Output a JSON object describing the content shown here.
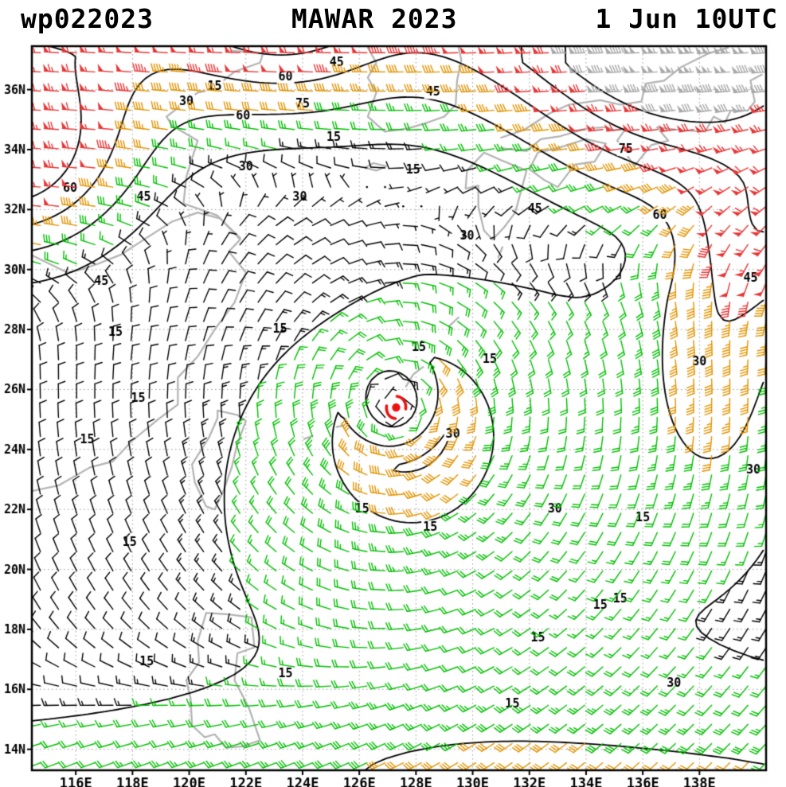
{
  "header": {
    "storm_id": "wp022023",
    "title": "MAWAR 2023",
    "valid_time": "1 Jun 10UTC"
  },
  "chart_data": {
    "type": "wind-barb-map",
    "title": "MAWAR 2023 1 Jun 10UTC",
    "storm_id": "wp022023",
    "storm_name": "MAWAR",
    "storm_year": "2023",
    "valid_time": "1 Jun 10UTC",
    "units": "kt",
    "lon_range": [
      114.45,
      140.35
    ],
    "lat_range": [
      13.3,
      37.45
    ],
    "lon_ticks": [
      {
        "value": 116,
        "label": "116E"
      },
      {
        "value": 118,
        "label": "118E"
      },
      {
        "value": 120,
        "label": "120E"
      },
      {
        "value": 122,
        "label": "122E"
      },
      {
        "value": 124,
        "label": "124E"
      },
      {
        "value": 126,
        "label": "126E"
      },
      {
        "value": 128,
        "label": "128E"
      },
      {
        "value": 130,
        "label": "130E"
      },
      {
        "value": 132,
        "label": "132E"
      },
      {
        "value": 134,
        "label": "134E"
      },
      {
        "value": 136,
        "label": "136E"
      },
      {
        "value": 138,
        "label": "138E"
      }
    ],
    "lat_ticks": [
      {
        "value": 14,
        "label": "14N"
      },
      {
        "value": 16,
        "label": "16N"
      },
      {
        "value": 18,
        "label": "18N"
      },
      {
        "value": 20,
        "label": "20N"
      },
      {
        "value": 22,
        "label": "22N"
      },
      {
        "value": 24,
        "label": "24N"
      },
      {
        "value": 26,
        "label": "26N"
      },
      {
        "value": 28,
        "label": "28N"
      },
      {
        "value": 30,
        "label": "30N"
      },
      {
        "value": 32,
        "label": "32N"
      },
      {
        "value": 34,
        "label": "34N"
      },
      {
        "value": 36,
        "label": "36N"
      }
    ],
    "isotach_levels_kt": [
      15,
      30,
      45,
      60,
      75
    ],
    "speed_thresholds_kt": [
      15,
      30,
      45,
      75
    ],
    "palette": {
      "barb_lt15": "#000000",
      "barb_15_30": "#00bf00",
      "barb_30_45": "#e29400",
      "barb_45_75": "#e83535",
      "barb_ge75": "#a8a8a8",
      "contour": "#000000",
      "coast": "#b3b3b3",
      "grid": "#999999",
      "storm_symbol": "#ee1111",
      "background": "#ffffff",
      "text": "#000000"
    },
    "storm_center": {
      "lon": 127.3,
      "lat": 25.4
    },
    "barb_grid": {
      "spacing_deg": 0.64,
      "lon_start": 114.75,
      "lat_start": 13.55
    },
    "wind_field_model": {
      "jet": {
        "base_kt": 92,
        "lat_start_base": 29.0,
        "lat_start_bump": 2.5,
        "lat_start_bump_lon": 123.0,
        "lat_start_bump_width": 5.0,
        "lat_scale": 6.5,
        "lat_exp": 1.4,
        "lat_clamp": 1.2,
        "floor": 0.42,
        "maxima": [
          {
            "lon": 123.2,
            "width": 3.2,
            "amp": 0.45
          },
          {
            "lon": 137.5,
            "width": 5.0,
            "amp": 0.55
          }
        ]
      },
      "west_jet": {
        "lon": 113.5,
        "lon_width": 4.5,
        "lat": 33.5,
        "lat_width": 3.5,
        "peak_kt": 55
      },
      "vortex": {
        "center_lon": 127.3,
        "center_lat": 25.4,
        "peak_kt": 36,
        "radius_max_deg": 2.0,
        "decay_exp": 0.7,
        "asym_amp": 0.35,
        "asym_dir_deg": -60
      },
      "east_band": {
        "lon": 138.5,
        "lon_width": 2.5,
        "lat": 27.0,
        "lat_width": 5.0,
        "peak_kt": 26
      },
      "se_jet": {
        "lon": 140.5,
        "lon_width": 3.0,
        "lat": 31.0,
        "lat_width": 3.2,
        "peak_kt": 42
      },
      "monsoon": {
        "peak_kt": 20,
        "lat": 13.0,
        "lat_width": 3.0
      }
    },
    "contour_labels": [
      {
        "lon": 125.2,
        "lat": 36.9,
        "text": "45"
      },
      {
        "lon": 120.9,
        "lat": 36.1,
        "text": "15"
      },
      {
        "lon": 123.4,
        "lat": 36.4,
        "text": "60"
      },
      {
        "lon": 119.9,
        "lat": 35.6,
        "text": "30"
      },
      {
        "lon": 124.0,
        "lat": 35.5,
        "text": "75"
      },
      {
        "lon": 121.9,
        "lat": 35.1,
        "text": "60"
      },
      {
        "lon": 128.6,
        "lat": 35.9,
        "text": "45"
      },
      {
        "lon": 125.1,
        "lat": 34.4,
        "text": "15"
      },
      {
        "lon": 135.4,
        "lat": 34.0,
        "text": "75"
      },
      {
        "lon": 115.8,
        "lat": 32.7,
        "text": "60"
      },
      {
        "lon": 118.4,
        "lat": 32.4,
        "text": "45"
      },
      {
        "lon": 122.0,
        "lat": 33.4,
        "text": "30"
      },
      {
        "lon": 127.9,
        "lat": 33.3,
        "text": "15"
      },
      {
        "lon": 123.9,
        "lat": 32.4,
        "text": "30"
      },
      {
        "lon": 132.2,
        "lat": 32.0,
        "text": "45"
      },
      {
        "lon": 136.6,
        "lat": 31.8,
        "text": "60"
      },
      {
        "lon": 129.8,
        "lat": 31.1,
        "text": "30"
      },
      {
        "lon": 116.9,
        "lat": 29.6,
        "text": "45"
      },
      {
        "lon": 139.8,
        "lat": 29.7,
        "text": "45"
      },
      {
        "lon": 117.4,
        "lat": 27.9,
        "text": "15"
      },
      {
        "lon": 123.2,
        "lat": 28.0,
        "text": "15"
      },
      {
        "lon": 128.1,
        "lat": 27.4,
        "text": "15"
      },
      {
        "lon": 130.6,
        "lat": 27.0,
        "text": "15"
      },
      {
        "lon": 138.0,
        "lat": 26.9,
        "text": "30"
      },
      {
        "lon": 118.2,
        "lat": 25.7,
        "text": "15"
      },
      {
        "lon": 116.4,
        "lat": 24.3,
        "text": "15"
      },
      {
        "lon": 129.3,
        "lat": 24.5,
        "text": "30"
      },
      {
        "lon": 139.9,
        "lat": 23.3,
        "text": "30"
      },
      {
        "lon": 126.1,
        "lat": 22.0,
        "text": "15"
      },
      {
        "lon": 132.9,
        "lat": 22.0,
        "text": "30"
      },
      {
        "lon": 128.5,
        "lat": 21.4,
        "text": "15"
      },
      {
        "lon": 117.9,
        "lat": 20.9,
        "text": "15"
      },
      {
        "lon": 136.0,
        "lat": 21.7,
        "text": "15"
      },
      {
        "lon": 135.2,
        "lat": 19.0,
        "text": "15"
      },
      {
        "lon": 134.5,
        "lat": 18.8,
        "text": "15"
      },
      {
        "lon": 132.3,
        "lat": 17.7,
        "text": "15"
      },
      {
        "lon": 118.5,
        "lat": 16.9,
        "text": "15"
      },
      {
        "lon": 123.4,
        "lat": 16.5,
        "text": "15"
      },
      {
        "lon": 137.1,
        "lat": 16.2,
        "text": "30"
      },
      {
        "lon": 131.4,
        "lat": 15.5,
        "text": "15"
      }
    ],
    "coastlines": [
      {
        "name": "china-coast",
        "points": [
          [
            114.4,
            22.6
          ],
          [
            115.4,
            22.8
          ],
          [
            116.5,
            23.4
          ],
          [
            117.3,
            23.6
          ],
          [
            118.0,
            24.3
          ],
          [
            118.9,
            25.0
          ],
          [
            119.6,
            25.5
          ],
          [
            119.6,
            26.4
          ],
          [
            120.3,
            27.1
          ],
          [
            120.9,
            28.0
          ],
          [
            121.6,
            28.9
          ],
          [
            122.0,
            29.9
          ],
          [
            121.4,
            30.6
          ],
          [
            121.8,
            31.0
          ],
          [
            121.0,
            31.8
          ],
          [
            119.8,
            32.2
          ],
          [
            119.9,
            33.1
          ],
          [
            120.3,
            34.3
          ],
          [
            119.4,
            34.8
          ],
          [
            119.2,
            35.1
          ],
          [
            120.3,
            35.9
          ],
          [
            120.8,
            36.0
          ],
          [
            121.6,
            36.6
          ],
          [
            122.5,
            36.9
          ],
          [
            122.6,
            37.2
          ],
          [
            121.5,
            37.3
          ]
        ]
      },
      {
        "name": "yangtze-river",
        "points": [
          [
            114.4,
            30.5
          ],
          [
            115.7,
            29.9
          ],
          [
            116.2,
            30.0
          ],
          [
            116.8,
            30.2
          ],
          [
            117.6,
            30.5
          ],
          [
            118.4,
            31.0
          ],
          [
            119.4,
            31.6
          ],
          [
            120.3,
            31.9
          ],
          [
            121.1,
            31.7
          ],
          [
            121.8,
            31.05
          ]
        ]
      },
      {
        "name": "taiwan",
        "points": [
          [
            121.0,
            25.3
          ],
          [
            121.7,
            25.15
          ],
          [
            122.0,
            24.95
          ],
          [
            121.7,
            24.2
          ],
          [
            121.5,
            23.4
          ],
          [
            121.2,
            22.6
          ],
          [
            120.9,
            22.0
          ],
          [
            120.6,
            22.1
          ],
          [
            120.2,
            22.9
          ],
          [
            120.1,
            23.5
          ],
          [
            120.7,
            24.4
          ],
          [
            121.0,
            25.05
          ],
          [
            121.0,
            25.3
          ]
        ]
      },
      {
        "name": "luzon",
        "points": [
          [
            120.6,
            18.55
          ],
          [
            121.4,
            18.5
          ],
          [
            122.2,
            18.4
          ],
          [
            122.3,
            17.4
          ],
          [
            121.7,
            17.2
          ],
          [
            121.6,
            16.3
          ],
          [
            122.1,
            15.4
          ],
          [
            122.5,
            14.3
          ],
          [
            121.9,
            14.1
          ],
          [
            121.3,
            14.05
          ],
          [
            120.9,
            14.5
          ],
          [
            120.55,
            14.4
          ],
          [
            120.1,
            14.8
          ],
          [
            120.05,
            15.7
          ],
          [
            119.9,
            16.3
          ],
          [
            120.35,
            16.9
          ],
          [
            120.3,
            17.6
          ],
          [
            120.6,
            18.55
          ]
        ]
      },
      {
        "name": "korea",
        "points": [
          [
            126.3,
            37.4
          ],
          [
            126.6,
            36.9
          ],
          [
            126.3,
            36.4
          ],
          [
            126.6,
            35.9
          ],
          [
            126.3,
            35.1
          ],
          [
            126.9,
            34.6
          ],
          [
            127.7,
            34.7
          ],
          [
            128.4,
            34.9
          ],
          [
            129.0,
            35.1
          ],
          [
            129.4,
            35.5
          ],
          [
            129.45,
            36.3
          ],
          [
            129.6,
            37.0
          ],
          [
            129.5,
            37.4
          ]
        ]
      },
      {
        "name": "jeju",
        "points": [
          [
            126.2,
            33.4
          ],
          [
            126.6,
            33.3
          ],
          [
            126.95,
            33.45
          ],
          [
            126.5,
            33.55
          ],
          [
            126.2,
            33.4
          ]
        ]
      },
      {
        "name": "kyushu",
        "points": [
          [
            130.4,
            33.9
          ],
          [
            129.8,
            33.3
          ],
          [
            129.75,
            32.7
          ],
          [
            130.2,
            32.8
          ],
          [
            130.2,
            32.1
          ],
          [
            130.4,
            31.3
          ],
          [
            130.7,
            31.0
          ],
          [
            131.1,
            31.4
          ],
          [
            131.5,
            31.9
          ],
          [
            131.7,
            32.6
          ],
          [
            131.9,
            33.3
          ],
          [
            131.0,
            33.65
          ],
          [
            130.4,
            33.9
          ]
        ]
      },
      {
        "name": "shikoku",
        "points": [
          [
            132.0,
            33.35
          ],
          [
            132.5,
            33.0
          ],
          [
            133.0,
            32.75
          ],
          [
            133.6,
            33.5
          ],
          [
            134.3,
            33.6
          ],
          [
            134.7,
            34.2
          ],
          [
            134.0,
            34.35
          ],
          [
            133.0,
            34.05
          ],
          [
            132.3,
            33.9
          ],
          [
            132.0,
            33.35
          ]
        ]
      },
      {
        "name": "honshu-south",
        "points": [
          [
            131.0,
            34.05
          ],
          [
            131.9,
            33.95
          ],
          [
            132.4,
            34.35
          ],
          [
            133.1,
            34.45
          ],
          [
            134.0,
            34.7
          ],
          [
            134.7,
            34.75
          ],
          [
            135.0,
            34.65
          ],
          [
            135.4,
            34.7
          ],
          [
            135.1,
            34.3
          ],
          [
            135.7,
            33.45
          ],
          [
            136.3,
            34.15
          ],
          [
            136.9,
            34.3
          ],
          [
            136.5,
            34.75
          ],
          [
            137.3,
            34.65
          ],
          [
            138.2,
            34.6
          ],
          [
            138.5,
            35.1
          ],
          [
            138.9,
            34.9
          ],
          [
            139.1,
            35.3
          ],
          [
            139.7,
            35.3
          ],
          [
            139.95,
            35.6
          ],
          [
            139.8,
            36.3
          ],
          [
            140.2,
            36.5
          ]
        ]
      },
      {
        "name": "honshu-north",
        "points": [
          [
            131.0,
            34.4
          ],
          [
            131.8,
            34.65
          ],
          [
            132.7,
            35.2
          ],
          [
            133.4,
            35.5
          ],
          [
            134.5,
            35.65
          ],
          [
            135.2,
            35.5
          ],
          [
            135.95,
            35.6
          ],
          [
            136.1,
            36.2
          ],
          [
            136.75,
            36.3
          ],
          [
            137.35,
            36.75
          ],
          [
            138.3,
            37.2
          ],
          [
            139.0,
            37.4
          ]
        ]
      },
      {
        "name": "okinawa",
        "points": [
          [
            127.65,
            26.1
          ],
          [
            127.9,
            26.5
          ],
          [
            128.25,
            26.75
          ]
        ]
      },
      {
        "name": "amami",
        "points": [
          [
            129.15,
            28.1
          ],
          [
            129.5,
            28.4
          ]
        ]
      },
      {
        "name": "miyako",
        "points": [
          [
            125.2,
            24.75
          ],
          [
            125.45,
            24.8
          ]
        ]
      },
      {
        "name": "ishigaki",
        "points": [
          [
            124.05,
            24.35
          ],
          [
            124.35,
            24.45
          ]
        ]
      },
      {
        "name": "tanegashima",
        "points": [
          [
            130.9,
            30.4
          ],
          [
            131.05,
            30.75
          ]
        ]
      }
    ]
  }
}
